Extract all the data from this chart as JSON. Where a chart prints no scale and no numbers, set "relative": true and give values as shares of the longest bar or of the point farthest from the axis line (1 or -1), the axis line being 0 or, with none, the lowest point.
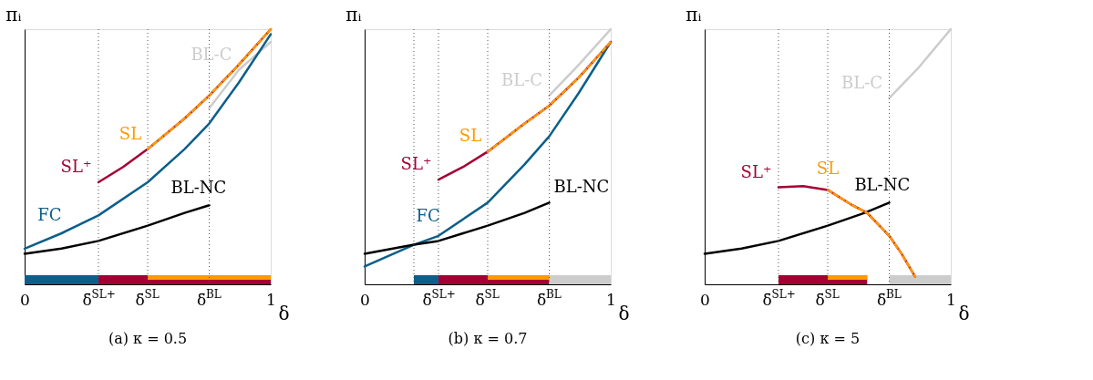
{
  "chart_data": [
    {
      "type": "line",
      "title": "(a) κ = 0.5",
      "xlabel": "δ",
      "ylabel": "πᵢ",
      "relative": true,
      "grid": false,
      "xlim": [
        0,
        1
      ],
      "xticks": [
        0,
        {
          "value": 0.3,
          "label": "δ̄$^{SL+}$"
        },
        {
          "value": 0.5,
          "label": "δ̄$^{SL}$"
        },
        {
          "value": 0.75,
          "label": "δ̄$^{BL}$"
        },
        1
      ],
      "series": [
        {
          "name": "BL-C",
          "color": "#cccccc",
          "x": [
            0.75,
            0.87,
            1
          ],
          "values": [
            0.69,
            0.84,
            0.95
          ]
        },
        {
          "name": "FC",
          "color": "#0b5f8a",
          "x": [
            0,
            0.15,
            0.3,
            0.5,
            0.65,
            0.75,
            0.87,
            1
          ],
          "values": [
            0.14,
            0.2,
            0.27,
            0.4,
            0.53,
            0.63,
            0.79,
            0.98
          ]
        },
        {
          "name": "BL-NC",
          "color": "#000000",
          "x": [
            0,
            0.15,
            0.3,
            0.5,
            0.65,
            0.75
          ],
          "values": [
            0.12,
            0.14,
            0.17,
            0.23,
            0.28,
            0.31
          ]
        },
        {
          "name": "SL⁺",
          "color": "#a50034",
          "x": [
            0.3,
            0.4,
            0.5,
            0.65,
            0.75,
            0.87,
            1
          ],
          "values": [
            0.4,
            0.46,
            0.53,
            0.65,
            0.74,
            0.86,
            1
          ]
        },
        {
          "name": "SL",
          "color": "#ff9900",
          "line_style": "dashed",
          "x": [
            0.5,
            0.65,
            0.75,
            0.87,
            1
          ],
          "values": [
            0.53,
            0.65,
            0.74,
            0.86,
            1
          ]
        }
      ],
      "ref_lines": [
        {
          "axis": "x",
          "value": 0.3,
          "line_style": "dotted"
        },
        {
          "axis": "x",
          "value": 0.5,
          "line_style": "dotted"
        },
        {
          "axis": "x",
          "value": 0.75,
          "line_style": "dotted"
        }
      ],
      "bands": [
        {
          "axis": "x",
          "from": 0,
          "to": 0.3,
          "color": "#0b5f8a"
        },
        {
          "axis": "x",
          "from": 0.3,
          "to": 1,
          "color": "#a50034"
        },
        {
          "axis": "x",
          "from": 0.5,
          "to": 1,
          "color": "#ff9900"
        }
      ]
    },
    {
      "type": "line",
      "title": "(b) κ = 0.7",
      "xlabel": "δ",
      "ylabel": "πᵢ",
      "relative": true,
      "grid": false,
      "xlim": [
        0,
        1
      ],
      "xticks": [
        0,
        {
          "value": 0.3,
          "label": "δ̄$^{SL+}$"
        },
        {
          "value": 0.5,
          "label": "δ̄$^{SL}$"
        },
        {
          "value": 0.75,
          "label": "δ̄$^{BL}$"
        },
        1
      ],
      "series": [
        {
          "name": "BL-C",
          "color": "#cccccc",
          "x": [
            0.75,
            0.87,
            1
          ],
          "values": [
            0.74,
            0.86,
            1
          ]
        },
        {
          "name": "FC",
          "color": "#0b5f8a",
          "x": [
            0,
            0.2,
            0.3,
            0.5,
            0.65,
            0.75,
            0.87,
            1
          ],
          "values": [
            0.07,
            0.155,
            0.19,
            0.32,
            0.47,
            0.58,
            0.75,
            0.95
          ]
        },
        {
          "name": "BL-NC",
          "color": "#000000",
          "x": [
            0,
            0.2,
            0.3,
            0.5,
            0.65,
            0.75
          ],
          "values": [
            0.12,
            0.155,
            0.17,
            0.23,
            0.28,
            0.32
          ]
        },
        {
          "name": "SL⁺",
          "color": "#a50034",
          "x": [
            0.3,
            0.4,
            0.5,
            0.65,
            0.75,
            0.87,
            1
          ],
          "values": [
            0.41,
            0.46,
            0.52,
            0.63,
            0.7,
            0.81,
            0.95
          ]
        },
        {
          "name": "SL",
          "color": "#ff9900",
          "line_style": "dashed",
          "x": [
            0.5,
            0.65,
            0.75,
            0.87,
            1
          ],
          "values": [
            0.52,
            0.63,
            0.7,
            0.81,
            0.95
          ]
        }
      ],
      "ref_lines": [
        {
          "axis": "x",
          "value": 0.2,
          "line_style": "dotted"
        },
        {
          "axis": "x",
          "value": 0.3,
          "line_style": "dotted"
        },
        {
          "axis": "x",
          "value": 0.5,
          "line_style": "dotted"
        },
        {
          "axis": "x",
          "value": 0.75,
          "line_style": "dotted"
        }
      ],
      "bands": [
        {
          "axis": "x",
          "from": 0.2,
          "to": 0.3,
          "color": "#0b5f8a"
        },
        {
          "axis": "x",
          "from": 0.3,
          "to": 0.75,
          "color": "#a50034"
        },
        {
          "axis": "x",
          "from": 0.5,
          "to": 0.75,
          "color": "#ff9900"
        },
        {
          "axis": "x",
          "from": 0.75,
          "to": 1,
          "color": "#cccccc"
        }
      ]
    },
    {
      "type": "line",
      "title": "(c) κ = 5",
      "xlabel": "δ",
      "ylabel": "πᵢ",
      "relative": true,
      "grid": false,
      "xlim": [
        0,
        1
      ],
      "xticks": [
        0,
        {
          "value": 0.3,
          "label": "δ̄$^{SL+}$"
        },
        {
          "value": 0.5,
          "label": "δ̄$^{SL}$"
        },
        {
          "value": 0.75,
          "label": "δ̄$^{BL}$"
        },
        1
      ],
      "series": [
        {
          "name": "BL-C",
          "color": "#cccccc",
          "x": [
            0.75,
            0.87,
            1
          ],
          "values": [
            0.73,
            0.85,
            1
          ]
        },
        {
          "name": "BL-NC",
          "color": "#000000",
          "x": [
            0,
            0.15,
            0.3,
            0.5,
            0.65,
            0.75
          ],
          "values": [
            0.12,
            0.14,
            0.17,
            0.23,
            0.28,
            0.32
          ]
        },
        {
          "name": "SL⁺",
          "color": "#a50034",
          "x": [
            0.3,
            0.4,
            0.5,
            0.6,
            0.66,
            0.75,
            0.8,
            0.855
          ],
          "values": [
            0.38,
            0.385,
            0.37,
            0.31,
            0.28,
            0.19,
            0.12,
            0.03
          ]
        },
        {
          "name": "SL",
          "color": "#ff9900",
          "line_style": "dashed",
          "x": [
            0.5,
            0.6,
            0.66,
            0.75,
            0.8,
            0.855
          ],
          "values": [
            0.37,
            0.31,
            0.28,
            0.19,
            0.12,
            0.03
          ]
        }
      ],
      "ref_lines": [
        {
          "axis": "x",
          "value": 0.3,
          "line_style": "dotted"
        },
        {
          "axis": "x",
          "value": 0.5,
          "line_style": "dotted"
        },
        {
          "axis": "x",
          "value": 0.75,
          "line_style": "dotted"
        }
      ],
      "bands": [
        {
          "axis": "x",
          "from": 0.3,
          "to": 0.66,
          "color": "#a50034"
        },
        {
          "axis": "x",
          "from": 0.5,
          "to": 0.66,
          "color": "#ff9900"
        },
        {
          "axis": "x",
          "from": 0.75,
          "to": 1,
          "color": "#cccccc"
        }
      ]
    }
  ]
}
